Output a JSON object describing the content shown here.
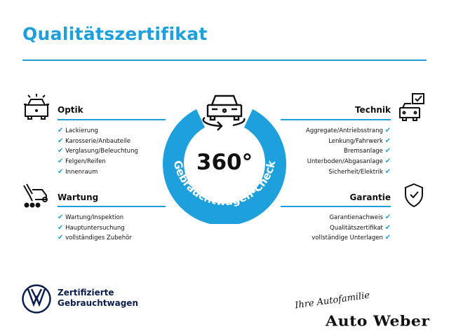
{
  "title": "Qualitätszertifikat",
  "accent": "#1ea0dc",
  "center": {
    "number": "360°",
    "arc_text": "Gebrauchtwagen-Check",
    "icon": "car-rotate-icon"
  },
  "sections": {
    "optik": {
      "title": "Optik",
      "icon": "car-lights-icon",
      "items": [
        "Lackierung",
        "Karosserie/Anbauteile",
        "Verglasung/Beleuchtung",
        "Felgen/Reifen",
        "Innenraum"
      ]
    },
    "wartung": {
      "title": "Wartung",
      "icon": "wrench-van-icon",
      "items": [
        "Wartung/Inspektion",
        "Hauptuntersuchung",
        "vollständiges Zubehör"
      ]
    },
    "technik": {
      "title": "Technik",
      "icon": "car-check-icon",
      "items": [
        "Aggregate/Antriebsstrang",
        "Lenkung/Fahrwerk",
        "Bremsanlage",
        "Unterboden/Abgasanlage",
        "Sicherheit/Elektrik"
      ]
    },
    "garantie": {
      "title": "Garantie",
      "icon": "shield-check-icon",
      "items": [
        "Garantienachweis",
        "Qualitätszertifikat",
        "vollständige Unterlagen"
      ]
    }
  },
  "check_glyph": "✔",
  "footer": {
    "vw_line1": "Zertifizierte",
    "vw_line2": "Gebrauchtwagen",
    "dealer_tagline": "Ihre Autofamilie",
    "dealer_name": "Auto Weber"
  }
}
